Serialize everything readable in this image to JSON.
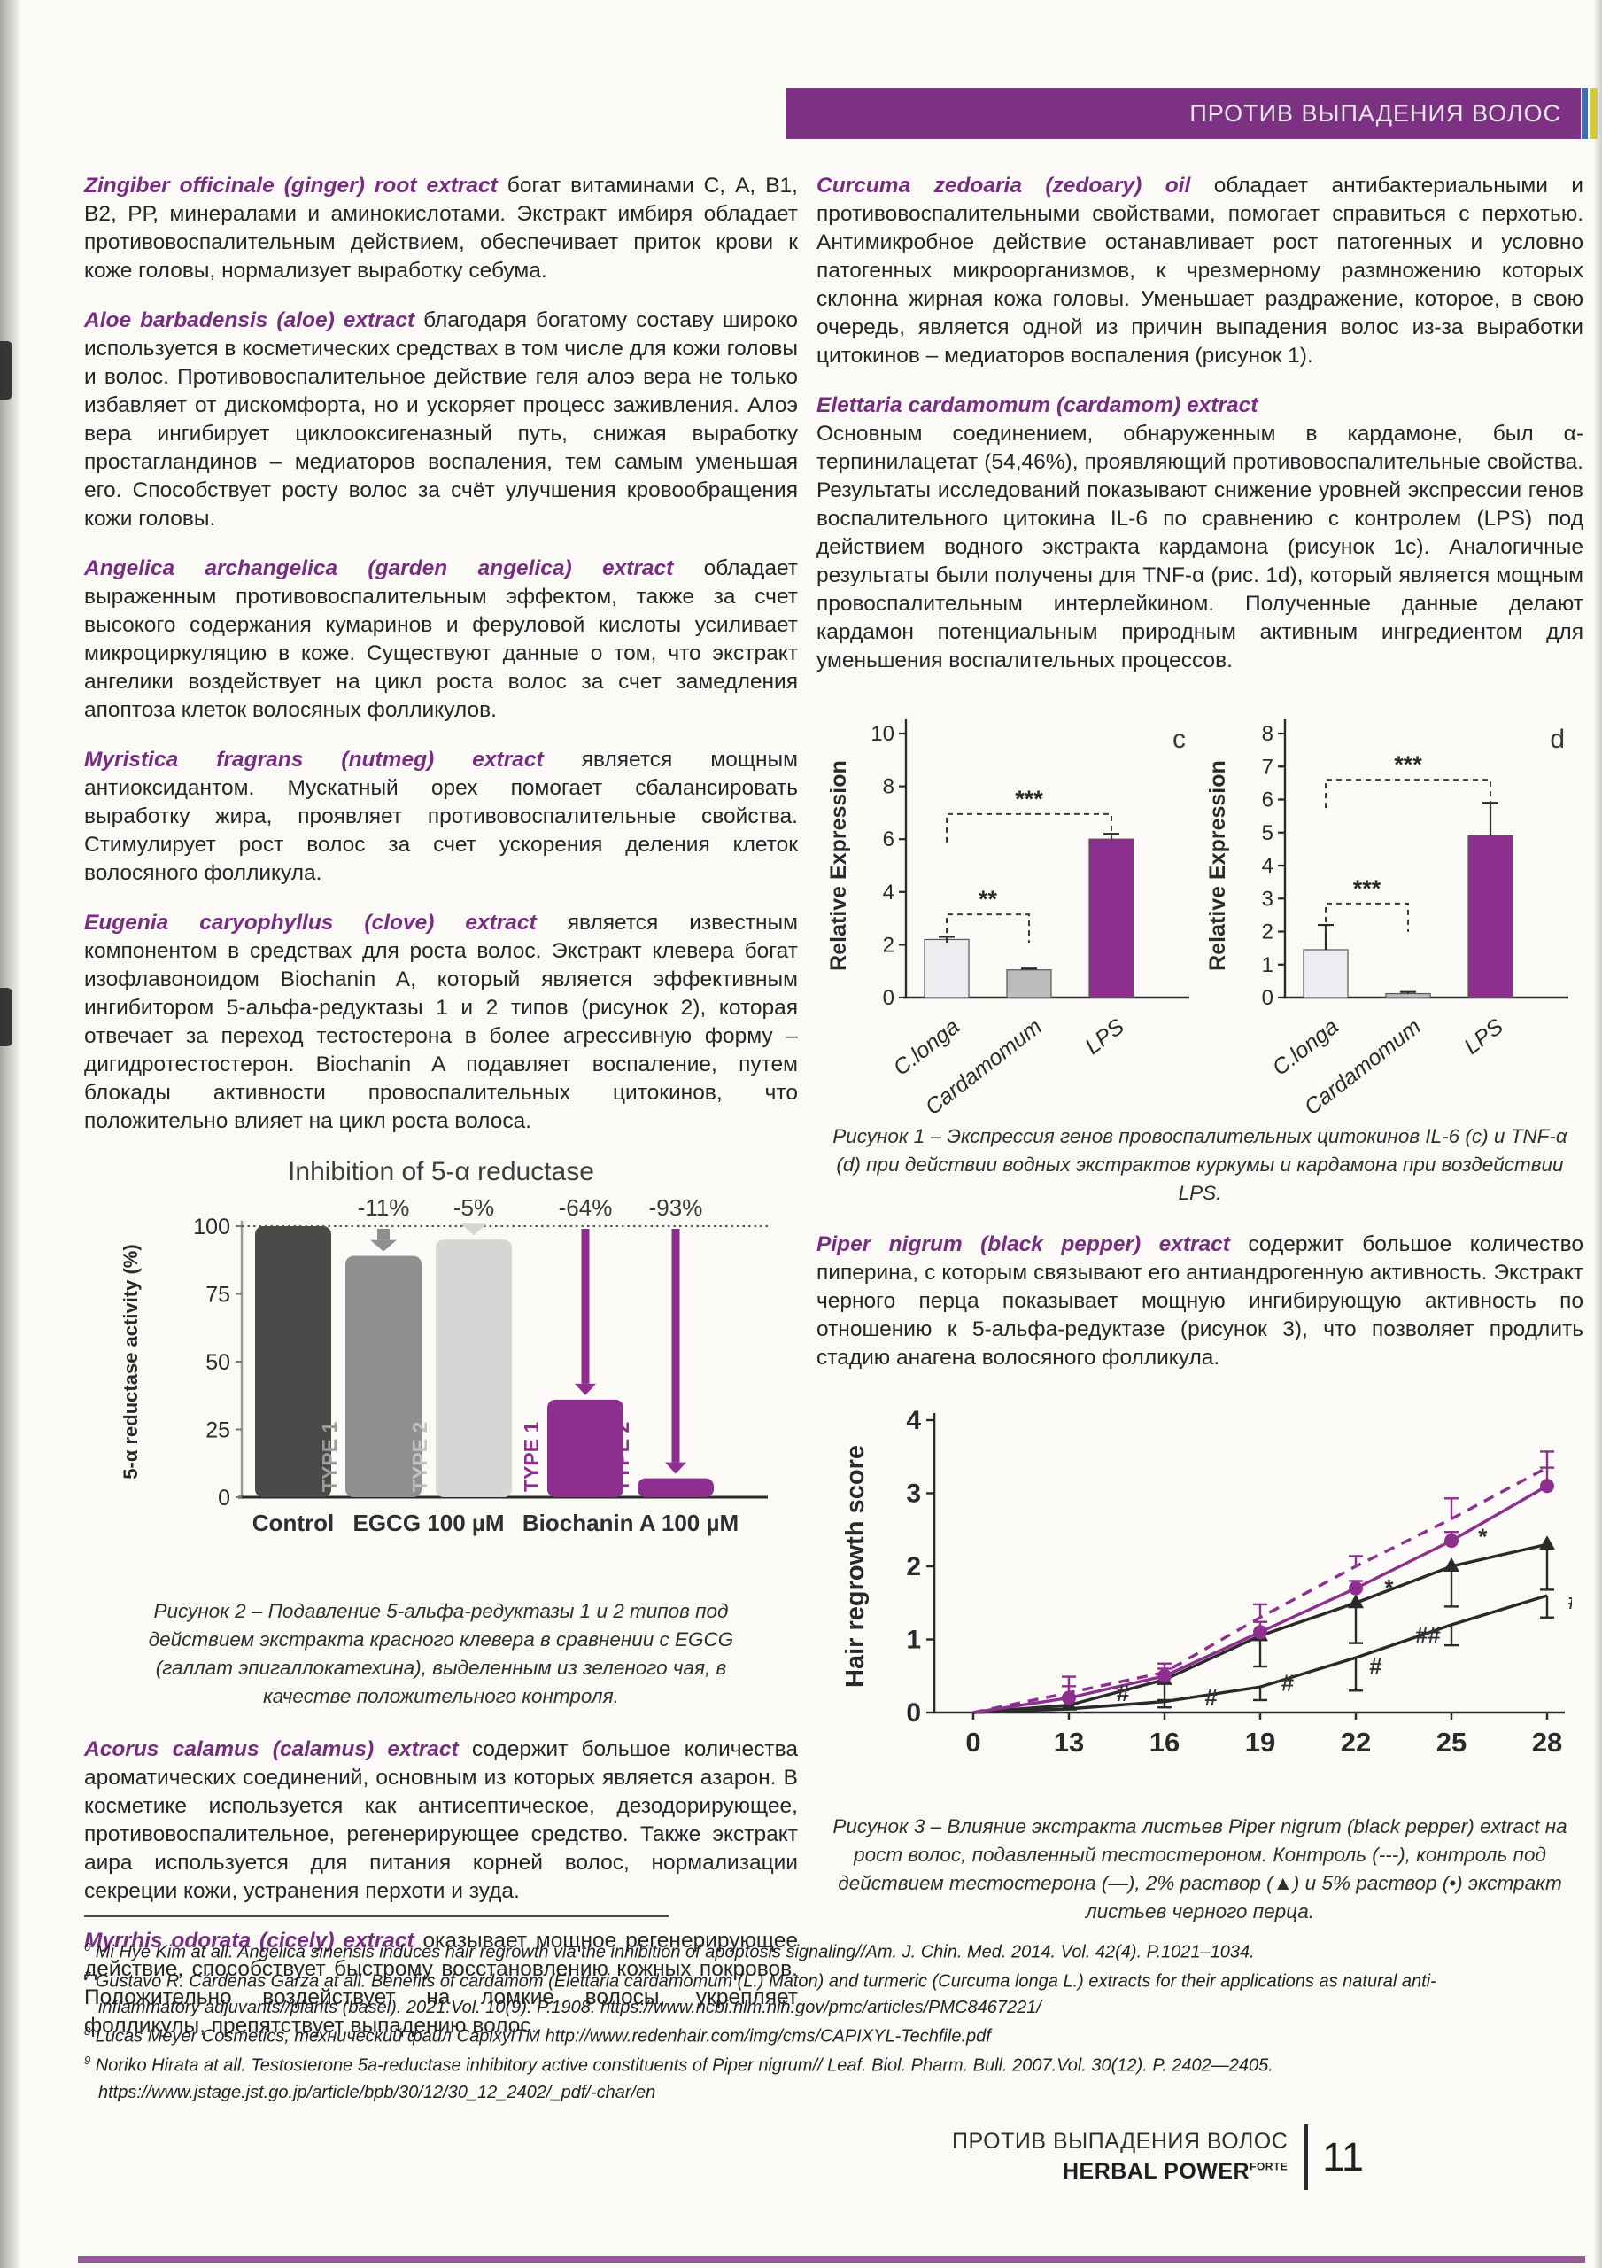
{
  "header": {
    "banner": "ПРОТИВ ВЫПАДЕНИЯ ВОЛОС"
  },
  "left": {
    "paras": [
      {
        "lead": "Zingiber officinale (ginger) root extract",
        "body": "богат витаминами С, А, В1, В2, РР, минералами и аминокислотами. Экстракт имбиря обладает противовоспалительным действием, обеспечивает приток крови к коже головы, нормализует выработку себума."
      },
      {
        "lead": "Aloe barbadensis (aloe) extract",
        "body": "благодаря богатому составу широко используется в косметических средствах в том числе для кожи головы и волос. Противовоспалительное действие геля алоэ вера не только избавляет от дискомфорта, но и ускоряет процесс заживления. Алоэ вера ингибирует циклооксигеназный путь, снижая выработку простагландинов – медиаторов воспаления, тем самым уменьшая его. Способствует росту волос за счёт улучшения кровообращения кожи головы."
      },
      {
        "lead": "Angelica archangelica (garden angelica) extract",
        "body": "обладает выраженным противовоспалительным эффектом, также за счет высокого содержания кумаринов и феруловой кислоты усиливает микроциркуляцию в коже. Существуют данные о том, что экстракт ангелики воздействует на цикл роста волос за счет замедления апоптоза клеток волосяных фолликулов."
      },
      {
        "lead": "Myristica fragrans (nutmeg) extract",
        "body": "является мощным антиоксидантом. Мускатный орех помогает сбалансировать выработку жира, проявляет противовоспалительные свойства. Стимулирует рост волос за счет ускорения деления клеток волосяного фолликула."
      },
      {
        "lead": "Eugenia caryophyllus (clove) extract",
        "body": "является известным компонентом в средствах для роста волос. Экстракт клевера богат изофлавоноидом Biochanin A, который является эффективным ингибитором 5-альфа-редуктазы 1 и 2 типов (рисунок 2), которая отвечает за переход тестостерона в более агрессивную форму – дигидротестостерон. Biochanin A подавляет воспаление, путем блокады активности провоспалительных цитокинов, что положительно влияет на цикл роста волоса."
      },
      {
        "lead": "Acorus calamus (calamus) extract",
        "body": "содержит большое количества ароматических соединений, основным из которых является азарон. В косметике используется как антисептическое, дезодорирующее, противовоспалительное, регенерирующее средство. Также экстракт аира используется для питания корней волос, нормализации секреции кожи, устранения перхоти и зуда."
      },
      {
        "lead": "Myrrhis odorata (cicely) extract",
        "body": "оказывает мощное регенерирующее действие, способствует быстрому восстановлению кожных покровов. Положительно воздействует на ломкие волосы, укрепляет фолликулы, препятствует выпадению волос."
      }
    ]
  },
  "right": {
    "curcuma": {
      "lead": "Curcuma zedoaria (zedoary) oil",
      "body": "обладает антибактериальными и противовоспалительными свойствами, помогает справиться с перхотью. Антимикробное действие останавливает рост патогенных и условно патогенных микроорганизмов, к чрезмерному размножению которых склонна жирная кожа головы. Уменьшает раздражение, которое, в свою очередь, является одной из причин выпадения волос из-за выработки цитокинов – медиаторов воспаления (рисунок 1)."
    },
    "elettaria_heading": "Elettaria cardamomum (cardamom) extract",
    "elettaria_body": "Основным соединением, обнаруженным в кардамоне, был α-терпинилацетат (54,46%), проявляющий противовоспалительные свойства. Результаты исследований показывают снижение уровней экспрессии генов воспалительного цитокина IL-6 по сравнению с контролем (LPS) под действием водного экстракта кардамона (рисунок 1c). Аналогичные результаты были получены для TNF-α (рис. 1d), который является мощным провоспалительным интерлейкином. Полученные данные делают кардамон потенциальным природным активным ингредиентом для уменьшения воспалительных процессов.",
    "piper": {
      "lead": "Piper nigrum (black pepper) extract",
      "body": "содержит большое количество пиперина, с которым связывают его антиандрогенную активность. Экстракт черного перца показывает мощную ингибирующую активность по отношению к 5-альфа-редуктазе (рисунок 3), что позволяет продлить стадию анагена волосяного фолликула."
    }
  },
  "captions": {
    "fig1": "Рисунок 1 – Экспрессия генов провоспалительных цитокинов IL-6 (c) и TNF-α (d) при действии водных экстрактов куркумы и кардамона при воздействии LPS.",
    "fig2": "Рисунок 2 – Подавление 5-альфа-редуктазы 1 и 2 типов под действием экстракта красного клевера в сравнении с EGCG (галлат эпигаллокатехина), выделенным из зеленого чая, в качестве положительного контроля.",
    "fig3": "Рисунок 3 – Влияние экстракта листьев Piper nigrum (black pepper) extract на рост волос, подавленный тестостероном. Контроль (---), контроль под действием тестостерона (—), 2% раствор (▲) и 5% раствор (•) экстракт листьев черного перца."
  },
  "footnotes": [
    {
      "num": "6",
      "text": "Mi Hye Kim at all. Angelica sinensis induces hair regrowth via the inhibition of apoptosis signaling//Am. J. Chin. Med. 2014. Vol. 42(4). P.1021–1034."
    },
    {
      "num": "7",
      "text": "Gustavo R. Cárdenas Garza at all. Benefits of cardamom (Elettaria cardamomum (L.) Maton) and turmeric (Curcuma longa L.) extracts for their applications as natural anti-inflammatory adjuvants//plants (basel). 2021.Vol. 10(9). P.1908. https://www.ncbi.nlm.nih.gov/pmc/articles/PMC8467221/"
    },
    {
      "num": "8",
      "text": "Lucas Meyer Cosmetics, технический файл CapixylTM http://www.redenhair.com/img/cms/CAPIXYL-Techfile.pdf"
    },
    {
      "num": "9",
      "text": "Noriko Hirata at all. Testosterone 5a-reductase inhibitory active constituents of Piper nigrum// Leaf. Biol. Pharm. Bull. 2007.Vol. 30(12). P. 2402—2405. https://www.jstage.jst.go.jp/article/bpb/30/12/30_12_2402/_pdf/-char/en"
    }
  ],
  "footer": {
    "section": "ПРОТИВ ВЫПАДЕНИЯ ВОЛОС",
    "brand": "HERBAL POWER",
    "brand_sup": "FORTE",
    "page": "11"
  },
  "chart_data": [
    {
      "id": "fig1c",
      "type": "bar",
      "letter": "c",
      "ylabel": "Relative Expression",
      "ylim": [
        0,
        10
      ],
      "yticks": [
        0,
        2,
        4,
        6,
        8,
        10
      ],
      "categories": [
        "C.longa",
        "Cardamomum",
        "LPS"
      ],
      "values": [
        2.2,
        1.05,
        6.0
      ],
      "errors": [
        0.1,
        0.05,
        0.2
      ],
      "colors": [
        "#ededf1",
        "#bdbdbf",
        "#8e2f8f"
      ],
      "brackets": [
        {
          "from": 0,
          "to": 1,
          "y": 3.15,
          "label": "**"
        },
        {
          "from": 0,
          "to": 2,
          "y": 6.95,
          "label": "***"
        }
      ]
    },
    {
      "id": "fig1d",
      "type": "bar",
      "letter": "d",
      "ylabel": "Relative Expression",
      "ylim": [
        0,
        8
      ],
      "yticks": [
        0,
        1,
        2,
        3,
        4,
        5,
        6,
        7,
        8
      ],
      "categories": [
        "C.longa",
        "Cardamomum",
        "LPS"
      ],
      "values": [
        1.45,
        0.12,
        4.9
      ],
      "errors": [
        0.75,
        0.05,
        1.0
      ],
      "colors": [
        "#ededf1",
        "#bdbdbf",
        "#8e2f8f"
      ],
      "brackets": [
        {
          "from": 0,
          "to": 1,
          "y": 2.85,
          "label": "***"
        },
        {
          "from": 0,
          "to": 2,
          "y": 6.6,
          "label": "***"
        }
      ]
    },
    {
      "id": "fig2",
      "type": "bar",
      "title": "Inhibition of 5-α reductase",
      "ylabel": "5-α reductase activity (%)",
      "ylim": [
        0,
        100
      ],
      "yticks": [
        0,
        25,
        50,
        75,
        100
      ],
      "groups": [
        "Control",
        "EGCG 100 µM",
        "Biochanin A 100 µM"
      ],
      "bars": [
        {
          "group": 0,
          "type_label": "",
          "value": 100,
          "color": "#4b4a48",
          "delta": ""
        },
        {
          "group": 1,
          "type_label": "TYPE 1",
          "value": 89,
          "color": "#8f8f8f",
          "delta": "-11%"
        },
        {
          "group": 1,
          "type_label": "TYPE 2",
          "value": 95,
          "color": "#d6d6d4",
          "delta": "-5%"
        },
        {
          "group": 2,
          "type_label": "TYPE 1",
          "value": 36,
          "color": "#8e2f8f",
          "delta": "-64%"
        },
        {
          "group": 2,
          "type_label": "TYPE 2",
          "value": 7,
          "color": "#8e2f8f",
          "delta": "-93%"
        }
      ],
      "type_label_colors": [
        "",
        "#9c9c9c",
        "#c2c2c2",
        "#8e2f8f",
        "#8e2f8f"
      ]
    },
    {
      "id": "fig3",
      "type": "line",
      "ylabel": "Hair regrowth score",
      "ylim": [
        0,
        4
      ],
      "yticks": [
        0,
        1,
        2,
        3,
        4
      ],
      "x": [
        0,
        13,
        16,
        19,
        22,
        25,
        28
      ],
      "series": [
        {
          "name": "2% раствор",
          "style": "solid",
          "color": "#2a2a2a",
          "marker": "triangle",
          "values": [
            0,
            0.1,
            0.45,
            1.05,
            1.5,
            2.0,
            2.3
          ],
          "err": [
            0,
            0,
            0.28,
            0.42,
            0.55,
            0.55,
            0.62
          ],
          "errdir": "down"
        },
        {
          "name": "контроль под действием тестостерона",
          "style": "solid",
          "color": "#2a2a2a",
          "marker": "none",
          "values": [
            0,
            0.05,
            0.15,
            0.35,
            0.75,
            1.2,
            1.6
          ],
          "err": [
            0,
            0,
            0.08,
            0.18,
            0.45,
            0.28,
            0.3
          ],
          "errdir": "down"
        },
        {
          "name": "Контроль",
          "style": "dashed",
          "color": "#8e2f8f",
          "marker": "none",
          "values": [
            0,
            0.27,
            0.55,
            1.3,
            2.0,
            2.65,
            3.35
          ],
          "err": [
            0,
            0.22,
            0.12,
            0.18,
            0.14,
            0.28,
            0.22
          ],
          "errdir": "up"
        },
        {
          "name": "5% раствор",
          "style": "solid",
          "color": "#8e2f8f",
          "marker": "circle",
          "values": [
            0,
            0.2,
            0.5,
            1.1,
            1.7,
            2.35,
            3.1
          ],
          "err": [
            0,
            0.16,
            0.1,
            0.14,
            0.1,
            0.12,
            0.25
          ],
          "errdir": "up"
        }
      ],
      "annotations": [
        {
          "xi": 6.32,
          "y": 3.02,
          "t": "**",
          "c": "#5a2a62"
        },
        {
          "xi": 5.28,
          "y": 2.3,
          "t": "*",
          "c": "#333333"
        },
        {
          "xi": 4.3,
          "y": 1.6,
          "t": "*",
          "c": "#333333"
        },
        {
          "xi": 1.5,
          "y": 0.16,
          "t": "#",
          "c": "#333333"
        },
        {
          "xi": 2.42,
          "y": 0.1,
          "t": "#",
          "c": "#333333"
        },
        {
          "xi": 3.22,
          "y": 0.3,
          "t": "#",
          "c": "#333333"
        },
        {
          "xi": 4.14,
          "y": 0.52,
          "t": "#",
          "c": "#333333"
        },
        {
          "xi": 4.62,
          "y": 0.95,
          "t": "##",
          "c": "#333333"
        },
        {
          "xi": 6.22,
          "y": 1.42,
          "t": "#",
          "c": "#333333"
        }
      ]
    }
  ]
}
